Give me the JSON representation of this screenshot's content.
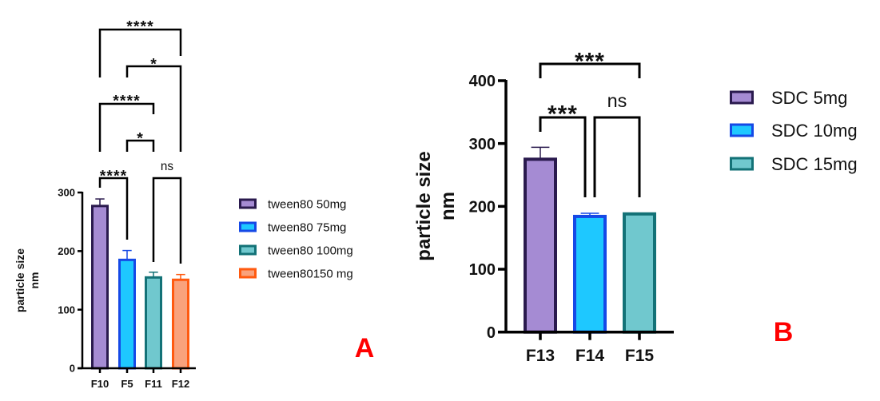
{
  "chart_data": [
    {
      "type": "bar",
      "panel_label": "A",
      "title": "",
      "xlabel": "",
      "ylabel": "particle size\nnm",
      "ylabel_lines": [
        "particle size",
        "nm"
      ],
      "ylim": [
        0,
        300
      ],
      "yticks": [
        0,
        100,
        200,
        300
      ],
      "categories": [
        "F10",
        "F5",
        "F11",
        "F12"
      ],
      "values": [
        277,
        185,
        155,
        151
      ],
      "error_upper": [
        289,
        201,
        164,
        160
      ],
      "legend": {
        "placement": "right",
        "entries": [
          "tween80 50mg",
          "tween80 75mg",
          "tween80 100mg",
          "tween80150 mg"
        ]
      },
      "fills": [
        "#A58BD3",
        "#1EC8FF",
        "#70C8CE",
        "#F9A27C"
      ],
      "strokes": [
        "#2A1A4E",
        "#1549E6",
        "#137277",
        "#FF5A10"
      ],
      "significance": [
        {
          "pair": [
            "F10",
            "F12"
          ],
          "label": "****"
        },
        {
          "pair": [
            "F5",
            "F12"
          ],
          "label": "*"
        },
        {
          "pair": [
            "F10",
            "F11"
          ],
          "label": "****"
        },
        {
          "pair": [
            "F5",
            "F11"
          ],
          "label": "*"
        },
        {
          "pair": [
            "F10",
            "F5"
          ],
          "label": "****"
        },
        {
          "pair": [
            "F11",
            "F12"
          ],
          "label": "ns"
        }
      ]
    },
    {
      "type": "bar",
      "panel_label": "B",
      "title": "",
      "xlabel": "",
      "ylabel": "particle size\nnm",
      "ylabel_lines": [
        "particle size",
        "nm"
      ],
      "ylim": [
        0,
        400
      ],
      "yticks": [
        0,
        100,
        200,
        300,
        400
      ],
      "categories": [
        "F13",
        "F14",
        "F15"
      ],
      "values": [
        275,
        184,
        188
      ],
      "error_upper": [
        294,
        189,
        189
      ],
      "legend": {
        "placement": "right",
        "entries": [
          "SDC 5mg",
          "SDC 10mg",
          "SDC 15mg"
        ]
      },
      "fills": [
        "#A58BD3",
        "#1EC8FF",
        "#70C8CE"
      ],
      "strokes": [
        "#2A1A4E",
        "#1549E6",
        "#137277"
      ],
      "significance": [
        {
          "pair": [
            "F13",
            "F15"
          ],
          "label": "***"
        },
        {
          "pair": [
            "F13",
            "F14"
          ],
          "label": "***"
        },
        {
          "pair": [
            "F14",
            "F15"
          ],
          "label": "ns"
        }
      ]
    }
  ],
  "panel_label_color": "#FF0000"
}
